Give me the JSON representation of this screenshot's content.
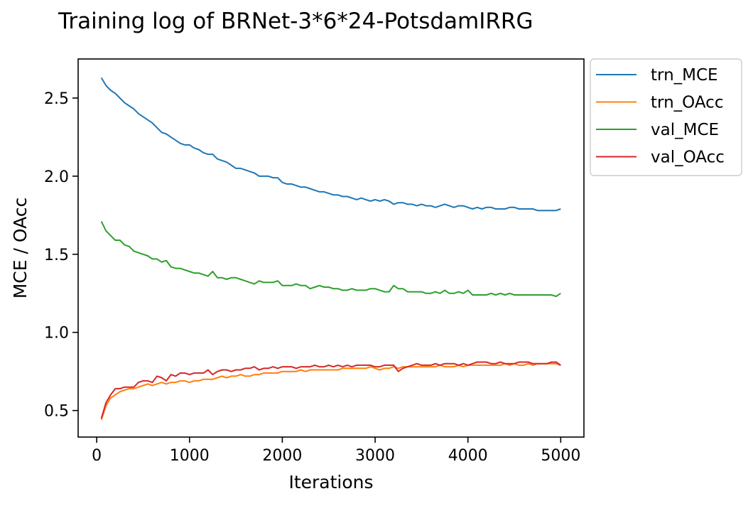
{
  "chart_data": {
    "type": "line",
    "title": "Training log of BRNet-3*6*24-PotsdamIRRG",
    "xlabel": "Iterations",
    "ylabel": "MCE / OAcc",
    "xlim": [
      -200,
      5250
    ],
    "ylim": [
      0.33,
      2.75
    ],
    "xticks": [
      0,
      1000,
      2000,
      3000,
      4000,
      5000
    ],
    "yticks": [
      0.5,
      1.0,
      1.5,
      2.0,
      2.5
    ],
    "xtick_labels": [
      "0",
      "1000",
      "2000",
      "3000",
      "4000",
      "5000"
    ],
    "ytick_labels": [
      "0.5",
      "1.0",
      "1.5",
      "2.0",
      "2.5"
    ],
    "legend_position": "outside-top-right",
    "grid": false,
    "x": [
      50,
      100,
      150,
      200,
      250,
      300,
      350,
      400,
      450,
      500,
      550,
      600,
      650,
      700,
      750,
      800,
      850,
      900,
      950,
      1000,
      1050,
      1100,
      1150,
      1200,
      1250,
      1300,
      1350,
      1400,
      1450,
      1500,
      1550,
      1600,
      1650,
      1700,
      1750,
      1800,
      1850,
      1900,
      1950,
      2000,
      2050,
      2100,
      2150,
      2200,
      2250,
      2300,
      2350,
      2400,
      2450,
      2500,
      2550,
      2600,
      2650,
      2700,
      2750,
      2800,
      2850,
      2900,
      2950,
      3000,
      3050,
      3100,
      3150,
      3200,
      3250,
      3300,
      3350,
      3400,
      3450,
      3500,
      3550,
      3600,
      3650,
      3700,
      3750,
      3800,
      3850,
      3900,
      3950,
      4000,
      4050,
      4100,
      4150,
      4200,
      4250,
      4300,
      4350,
      4400,
      4450,
      4500,
      4550,
      4600,
      4650,
      4700,
      4750,
      4800,
      4850,
      4900,
      4950,
      5000
    ],
    "series": [
      {
        "name": "trn_MCE",
        "color": "#1f77b4",
        "values": [
          2.63,
          2.58,
          2.55,
          2.53,
          2.5,
          2.47,
          2.45,
          2.43,
          2.4,
          2.38,
          2.36,
          2.34,
          2.31,
          2.28,
          2.27,
          2.25,
          2.23,
          2.21,
          2.2,
          2.2,
          2.18,
          2.17,
          2.15,
          2.14,
          2.14,
          2.11,
          2.1,
          2.09,
          2.07,
          2.05,
          2.05,
          2.04,
          2.03,
          2.02,
          2.0,
          2.0,
          2.0,
          1.99,
          1.99,
          1.96,
          1.95,
          1.95,
          1.94,
          1.93,
          1.93,
          1.92,
          1.91,
          1.9,
          1.9,
          1.89,
          1.88,
          1.88,
          1.87,
          1.87,
          1.86,
          1.85,
          1.86,
          1.85,
          1.84,
          1.85,
          1.84,
          1.85,
          1.84,
          1.82,
          1.83,
          1.83,
          1.82,
          1.82,
          1.81,
          1.82,
          1.81,
          1.81,
          1.8,
          1.81,
          1.82,
          1.81,
          1.8,
          1.81,
          1.81,
          1.8,
          1.79,
          1.8,
          1.79,
          1.8,
          1.8,
          1.79,
          1.79,
          1.79,
          1.8,
          1.8,
          1.79,
          1.79,
          1.79,
          1.79,
          1.78,
          1.78,
          1.78,
          1.78,
          1.78,
          1.79
        ]
      },
      {
        "name": "trn_OAcc",
        "color": "#ff7f0e",
        "values": [
          0.44,
          0.53,
          0.58,
          0.6,
          0.62,
          0.63,
          0.64,
          0.64,
          0.65,
          0.66,
          0.67,
          0.66,
          0.67,
          0.68,
          0.67,
          0.68,
          0.68,
          0.69,
          0.69,
          0.68,
          0.69,
          0.69,
          0.7,
          0.7,
          0.7,
          0.71,
          0.72,
          0.71,
          0.72,
          0.72,
          0.73,
          0.72,
          0.72,
          0.73,
          0.73,
          0.74,
          0.74,
          0.74,
          0.74,
          0.75,
          0.75,
          0.75,
          0.75,
          0.76,
          0.75,
          0.76,
          0.76,
          0.76,
          0.76,
          0.76,
          0.76,
          0.76,
          0.77,
          0.77,
          0.77,
          0.77,
          0.77,
          0.77,
          0.78,
          0.77,
          0.76,
          0.77,
          0.77,
          0.78,
          0.77,
          0.78,
          0.78,
          0.78,
          0.78,
          0.78,
          0.78,
          0.78,
          0.78,
          0.79,
          0.78,
          0.78,
          0.78,
          0.79,
          0.78,
          0.79,
          0.79,
          0.79,
          0.79,
          0.79,
          0.79,
          0.79,
          0.79,
          0.8,
          0.79,
          0.8,
          0.79,
          0.79,
          0.8,
          0.79,
          0.8,
          0.8,
          0.8,
          0.8,
          0.8,
          0.79
        ]
      },
      {
        "name": "val_MCE",
        "color": "#2ca02c",
        "values": [
          1.71,
          1.65,
          1.62,
          1.59,
          1.59,
          1.56,
          1.55,
          1.52,
          1.51,
          1.5,
          1.49,
          1.47,
          1.47,
          1.45,
          1.46,
          1.42,
          1.41,
          1.41,
          1.4,
          1.39,
          1.38,
          1.38,
          1.37,
          1.36,
          1.39,
          1.35,
          1.35,
          1.34,
          1.35,
          1.35,
          1.34,
          1.33,
          1.32,
          1.31,
          1.33,
          1.32,
          1.32,
          1.32,
          1.33,
          1.3,
          1.3,
          1.3,
          1.31,
          1.3,
          1.3,
          1.28,
          1.29,
          1.3,
          1.29,
          1.29,
          1.28,
          1.28,
          1.27,
          1.27,
          1.28,
          1.27,
          1.27,
          1.27,
          1.28,
          1.28,
          1.27,
          1.26,
          1.26,
          1.3,
          1.28,
          1.28,
          1.26,
          1.26,
          1.26,
          1.26,
          1.25,
          1.25,
          1.26,
          1.25,
          1.27,
          1.25,
          1.25,
          1.26,
          1.25,
          1.27,
          1.24,
          1.24,
          1.24,
          1.24,
          1.25,
          1.24,
          1.25,
          1.24,
          1.25,
          1.24,
          1.24,
          1.24,
          1.24,
          1.24,
          1.24,
          1.24,
          1.24,
          1.24,
          1.23,
          1.25
        ]
      },
      {
        "name": "val_OAcc",
        "color": "#d62728",
        "values": [
          0.45,
          0.55,
          0.6,
          0.64,
          0.64,
          0.65,
          0.65,
          0.65,
          0.68,
          0.69,
          0.69,
          0.68,
          0.72,
          0.71,
          0.69,
          0.73,
          0.72,
          0.74,
          0.74,
          0.73,
          0.74,
          0.74,
          0.74,
          0.76,
          0.73,
          0.75,
          0.76,
          0.76,
          0.75,
          0.76,
          0.76,
          0.77,
          0.77,
          0.78,
          0.76,
          0.77,
          0.77,
          0.78,
          0.77,
          0.78,
          0.78,
          0.78,
          0.77,
          0.78,
          0.78,
          0.78,
          0.79,
          0.78,
          0.78,
          0.79,
          0.78,
          0.79,
          0.78,
          0.79,
          0.78,
          0.79,
          0.79,
          0.79,
          0.79,
          0.78,
          0.78,
          0.79,
          0.79,
          0.79,
          0.75,
          0.77,
          0.78,
          0.79,
          0.8,
          0.79,
          0.79,
          0.79,
          0.8,
          0.79,
          0.8,
          0.8,
          0.8,
          0.79,
          0.8,
          0.79,
          0.8,
          0.81,
          0.81,
          0.81,
          0.8,
          0.8,
          0.81,
          0.8,
          0.8,
          0.8,
          0.81,
          0.81,
          0.81,
          0.8,
          0.8,
          0.8,
          0.8,
          0.81,
          0.81,
          0.79
        ]
      }
    ]
  }
}
